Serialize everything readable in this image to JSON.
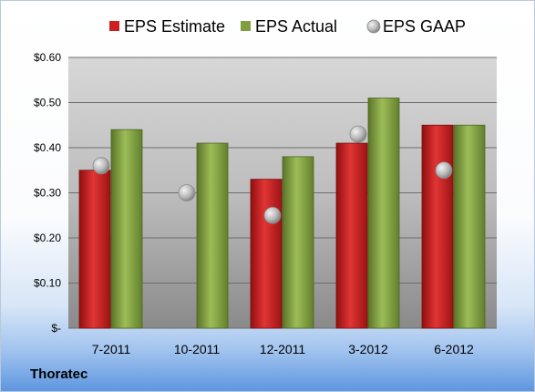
{
  "chart_data": {
    "type": "bar",
    "categories": [
      "7-2011",
      "10-2011",
      "12-2011",
      "3-2012",
      "6-2012"
    ],
    "series": [
      {
        "name": "EPS Estimate",
        "kind": "bar",
        "color": "#cc1f1f",
        "values": [
          0.35,
          null,
          0.33,
          0.41,
          0.45
        ]
      },
      {
        "name": "EPS Actual",
        "kind": "bar",
        "color": "#7f9e3e",
        "values": [
          0.44,
          0.41,
          0.38,
          0.51,
          0.45
        ]
      },
      {
        "name": "EPS GAAP",
        "kind": "scatter",
        "color": "#b4b4b4",
        "values": [
          0.36,
          0.3,
          0.25,
          0.43,
          0.35
        ]
      }
    ],
    "ylim": [
      0,
      0.6
    ],
    "yticks": [
      0,
      0.1,
      0.2,
      0.3,
      0.4,
      0.5,
      0.6
    ],
    "ytick_labels": [
      "$-",
      "$0.10",
      "$0.20",
      "$0.30",
      "$0.40",
      "$0.50",
      "$0.60"
    ],
    "grid": true,
    "legend_placement": "top"
  },
  "footer": {
    "company": "Thoratec"
  }
}
